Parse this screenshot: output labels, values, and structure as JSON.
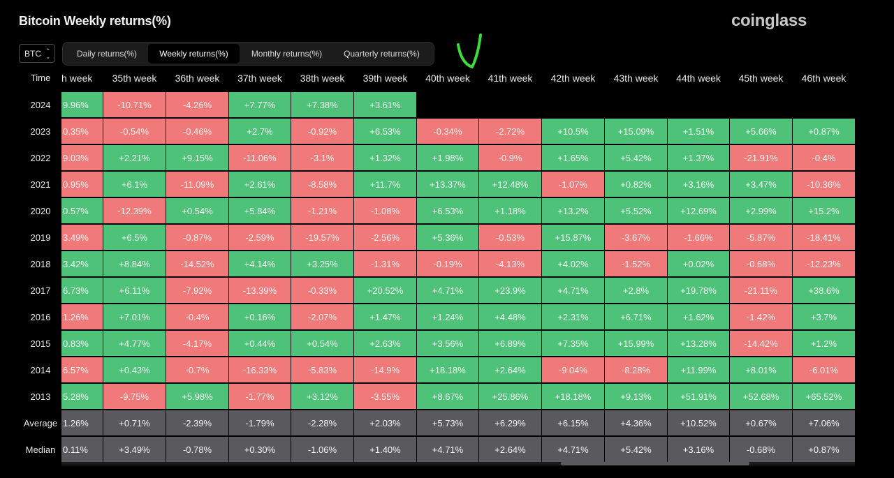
{
  "header": {
    "title": "Bitcoin Weekly returns(%)",
    "brand": "coinglass"
  },
  "controls": {
    "coin": "BTC",
    "tabs": [
      {
        "label": "Daily returns(%)",
        "active": false
      },
      {
        "label": "Weekly returns(%)",
        "active": true
      },
      {
        "label": "Monthly returns(%)",
        "active": false
      },
      {
        "label": "Quarterly returns(%)",
        "active": false
      }
    ]
  },
  "colors": {
    "positive": "#4fc27a",
    "negative": "#f07a7a",
    "stat": "#5a5a5e",
    "annotation": "#3ddc3d"
  },
  "table": {
    "corner_label": "Time",
    "columns": [
      "h week",
      "35th week",
      "36th week",
      "37th week",
      "38th week",
      "39th week",
      "40th week",
      "41th week",
      "42th week",
      "43th week",
      "44th week",
      "45th week",
      "46th week"
    ],
    "rows": [
      {
        "label": "2024",
        "values": [
          "9.96%",
          "-10.71%",
          "-4.26%",
          "+7.77%",
          "+7.38%",
          "+3.61%",
          "",
          "",
          "",
          "",
          "",
          "",
          ""
        ],
        "signs": [
          "pos",
          "neg",
          "neg",
          "pos",
          "pos",
          "pos",
          "",
          "",
          "",
          "",
          "",
          "",
          ""
        ]
      },
      {
        "label": "2023",
        "values": [
          "0.35%",
          "-0.54%",
          "-0.46%",
          "+2.7%",
          "-0.92%",
          "+6.53%",
          "-0.34%",
          "-2.72%",
          "+10.5%",
          "+15.09%",
          "+1.51%",
          "+5.66%",
          "+0.87%"
        ],
        "signs": [
          "neg",
          "neg",
          "neg",
          "pos",
          "neg",
          "pos",
          "neg",
          "neg",
          "pos",
          "pos",
          "pos",
          "pos",
          "pos"
        ]
      },
      {
        "label": "2022",
        "values": [
          "9.03%",
          "+2.21%",
          "+9.15%",
          "-11.06%",
          "-3.1%",
          "+1.32%",
          "+1.98%",
          "-0.9%",
          "+1.65%",
          "+5.42%",
          "+1.37%",
          "-21.91%",
          "-0.4%"
        ],
        "signs": [
          "neg",
          "pos",
          "pos",
          "neg",
          "neg",
          "pos",
          "pos",
          "neg",
          "pos",
          "pos",
          "pos",
          "neg",
          "neg"
        ]
      },
      {
        "label": "2021",
        "values": [
          "0.95%",
          "+6.1%",
          "-11.09%",
          "+2.61%",
          "-8.58%",
          "+11.7%",
          "+13.37%",
          "+12.48%",
          "-1.07%",
          "+0.82%",
          "+3.16%",
          "+3.47%",
          "-10.36%"
        ],
        "signs": [
          "neg",
          "pos",
          "neg",
          "pos",
          "neg",
          "pos",
          "pos",
          "pos",
          "neg",
          "pos",
          "pos",
          "pos",
          "neg"
        ]
      },
      {
        "label": "2020",
        "values": [
          "0.57%",
          "-12.39%",
          "+0.54%",
          "+5.84%",
          "-1.21%",
          "-1.08%",
          "+6.53%",
          "+1.18%",
          "+13.2%",
          "+5.52%",
          "+12.69%",
          "+2.99%",
          "+15.2%"
        ],
        "signs": [
          "pos",
          "neg",
          "pos",
          "pos",
          "neg",
          "neg",
          "pos",
          "pos",
          "pos",
          "pos",
          "pos",
          "pos",
          "pos"
        ]
      },
      {
        "label": "2019",
        "values": [
          "3.49%",
          "+6.5%",
          "-0.87%",
          "-2.59%",
          "-19.57%",
          "-2.56%",
          "+5.36%",
          "-0.53%",
          "+15.87%",
          "-3.67%",
          "-1.66%",
          "-5.87%",
          "-18.41%"
        ],
        "signs": [
          "neg",
          "pos",
          "neg",
          "neg",
          "neg",
          "neg",
          "pos",
          "neg",
          "pos",
          "neg",
          "neg",
          "neg",
          "neg"
        ]
      },
      {
        "label": "2018",
        "values": [
          "3.42%",
          "+8.84%",
          "-14.52%",
          "+4.14%",
          "+3.25%",
          "-1.31%",
          "-0.19%",
          "-4.13%",
          "+4.02%",
          "-1.52%",
          "+0.02%",
          "-0.68%",
          "-12.23%"
        ],
        "signs": [
          "pos",
          "pos",
          "neg",
          "pos",
          "pos",
          "neg",
          "neg",
          "neg",
          "pos",
          "neg",
          "pos",
          "neg",
          "neg"
        ]
      },
      {
        "label": "2017",
        "values": [
          "6.73%",
          "+6.11%",
          "-7.92%",
          "-13.39%",
          "-0.33%",
          "+20.52%",
          "+4.71%",
          "+23.9%",
          "+4.71%",
          "+2.8%",
          "+19.78%",
          "-21.11%",
          "+38.6%"
        ],
        "signs": [
          "pos",
          "pos",
          "neg",
          "neg",
          "neg",
          "pos",
          "pos",
          "pos",
          "pos",
          "pos",
          "pos",
          "neg",
          "pos"
        ]
      },
      {
        "label": "2016",
        "values": [
          "1.26%",
          "+7.01%",
          "-0.4%",
          "+0.16%",
          "-2.07%",
          "+1.47%",
          "+1.24%",
          "+4.48%",
          "+2.31%",
          "+6.71%",
          "+1.62%",
          "-1.42%",
          "+3.7%"
        ],
        "signs": [
          "neg",
          "pos",
          "neg",
          "pos",
          "neg",
          "pos",
          "pos",
          "pos",
          "pos",
          "pos",
          "pos",
          "neg",
          "pos"
        ]
      },
      {
        "label": "2015",
        "values": [
          "0.83%",
          "+4.77%",
          "-4.17%",
          "+0.44%",
          "+0.54%",
          "+2.63%",
          "+3.56%",
          "+6.89%",
          "+7.35%",
          "+15.99%",
          "+13.28%",
          "-14.42%",
          "+1.2%"
        ],
        "signs": [
          "pos",
          "pos",
          "neg",
          "pos",
          "pos",
          "pos",
          "pos",
          "pos",
          "pos",
          "pos",
          "pos",
          "neg",
          "pos"
        ]
      },
      {
        "label": "2014",
        "values": [
          "6.57%",
          "+0.43%",
          "-0.7%",
          "-16.33%",
          "-5.83%",
          "-14.9%",
          "+18.18%",
          "+2.64%",
          "-9.04%",
          "-8.28%",
          "+11.99%",
          "+8.01%",
          "-6.01%"
        ],
        "signs": [
          "neg",
          "pos",
          "neg",
          "neg",
          "neg",
          "neg",
          "pos",
          "pos",
          "neg",
          "neg",
          "pos",
          "pos",
          "neg"
        ]
      },
      {
        "label": "2013",
        "values": [
          "5.28%",
          "-9.75%",
          "+5.98%",
          "-1.77%",
          "+3.12%",
          "-3.55%",
          "+8.67%",
          "+25.86%",
          "+18.18%",
          "+9.13%",
          "+51.91%",
          "+52.68%",
          "+65.52%"
        ],
        "signs": [
          "pos",
          "neg",
          "pos",
          "neg",
          "pos",
          "neg",
          "pos",
          "pos",
          "pos",
          "pos",
          "pos",
          "pos",
          "pos"
        ]
      },
      {
        "label": "Average",
        "values": [
          "1.26%",
          "+0.71%",
          "-2.39%",
          "-1.79%",
          "-2.28%",
          "+2.03%",
          "+5.73%",
          "+6.29%",
          "+6.15%",
          "+4.36%",
          "+10.52%",
          "+0.67%",
          "+7.06%"
        ],
        "signs": [
          "stat",
          "stat",
          "stat",
          "stat",
          "stat",
          "stat",
          "stat",
          "stat",
          "stat",
          "stat",
          "stat",
          "stat",
          "stat"
        ]
      },
      {
        "label": "Median",
        "values": [
          "0.11%",
          "+3.49%",
          "-0.78%",
          "+0.30%",
          "-1.06%",
          "+1.40%",
          "+4.71%",
          "+2.64%",
          "+4.71%",
          "+5.42%",
          "+3.16%",
          "-0.68%",
          "+0.87%"
        ],
        "signs": [
          "stat",
          "stat",
          "stat",
          "stat",
          "stat",
          "stat",
          "stat",
          "stat",
          "stat",
          "stat",
          "stat",
          "stat",
          "stat"
        ]
      }
    ]
  }
}
